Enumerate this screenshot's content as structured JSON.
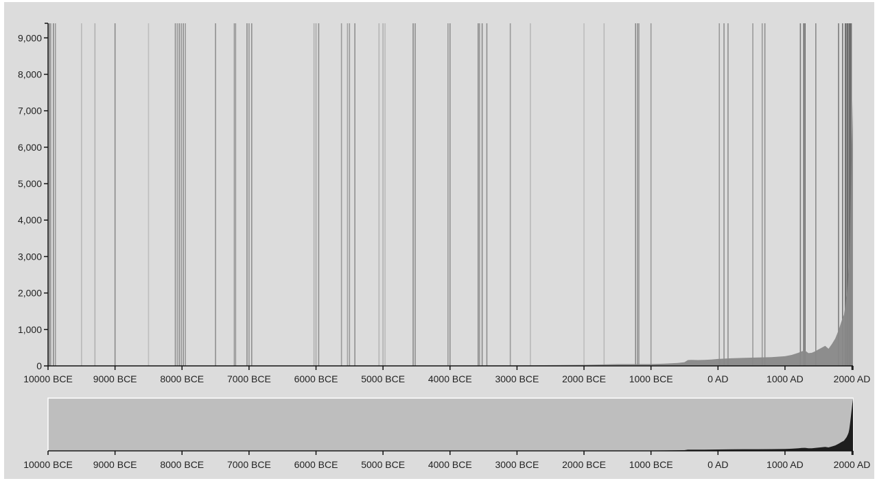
{
  "chart_data": [
    {
      "type": "area",
      "title": "",
      "xlabel": "",
      "ylabel": "",
      "xlim": [
        -10000,
        2015
      ],
      "ylim": [
        0,
        9400
      ],
      "grid": false,
      "x_ticks": [
        {
          "value": -10000,
          "label": "10000 BCE"
        },
        {
          "value": -9000,
          "label": "9000 BCE"
        },
        {
          "value": -8000,
          "label": "8000 BCE"
        },
        {
          "value": -7000,
          "label": "7000 BCE"
        },
        {
          "value": -6000,
          "label": "6000 BCE"
        },
        {
          "value": -5000,
          "label": "5000 BCE"
        },
        {
          "value": -4000,
          "label": "4000 BCE"
        },
        {
          "value": -3000,
          "label": "3000 BCE"
        },
        {
          "value": -2000,
          "label": "2000 BCE"
        },
        {
          "value": -1000,
          "label": "1000 BCE"
        },
        {
          "value": 0,
          "label": "0 AD"
        },
        {
          "value": 1000,
          "label": "1000 AD"
        },
        {
          "value": 2000,
          "label": "2000 AD"
        }
      ],
      "y_ticks": [
        {
          "value": 0,
          "label": "0"
        },
        {
          "value": 1000,
          "label": "1,000"
        },
        {
          "value": 2000,
          "label": "2,000"
        },
        {
          "value": 3000,
          "label": "3,000"
        },
        {
          "value": 4000,
          "label": "4,000"
        },
        {
          "value": 5000,
          "label": "5,000"
        },
        {
          "value": 6000,
          "label": "6,000"
        },
        {
          "value": 7000,
          "label": "7,000"
        },
        {
          "value": 8000,
          "label": "8,000"
        },
        {
          "value": 9000,
          "label": "9,000"
        }
      ],
      "series": [
        {
          "x": [
            -10000,
            -8000,
            -6000,
            -4000,
            -3000,
            -2000,
            -1500,
            -1000,
            -800,
            -600,
            -500,
            -450,
            -400,
            -300,
            -200,
            -100,
            0,
            200,
            400,
            600,
            800,
            1000,
            1100,
            1200,
            1250,
            1300,
            1350,
            1400,
            1450,
            1500,
            1550,
            1600,
            1650,
            1700,
            1750,
            1800,
            1850,
            1880,
            1900,
            1920,
            1940,
            1950,
            1960,
            1970,
            1980,
            1990,
            2000,
            2005,
            2010,
            2015
          ],
          "values": [
            4,
            5,
            7,
            10,
            14,
            27,
            50,
            50,
            60,
            80,
            100,
            160,
            165,
            160,
            165,
            175,
            190,
            210,
            220,
            230,
            240,
            265,
            300,
            360,
            400,
            420,
            350,
            360,
            400,
            450,
            500,
            550,
            470,
            600,
            750,
            980,
            1260,
            1400,
            1650,
            1900,
            2300,
            2550,
            3000,
            3700,
            4450,
            5300,
            6100,
            6500,
            6900,
            7300
          ]
        }
      ],
      "event_lines": [
        {
          "x": -9980,
          "color": "#888888"
        },
        {
          "x": -9960,
          "color": "#999999"
        },
        {
          "x": -9920,
          "color": "#888888"
        },
        {
          "x": -9890,
          "color": "#999999"
        },
        {
          "x": -9500,
          "color": "#b8b8b8"
        },
        {
          "x": -9300,
          "color": "#b0b0b0"
        },
        {
          "x": -9000,
          "color": "#8a8a8a"
        },
        {
          "x": -8500,
          "color": "#bdbdbd"
        },
        {
          "x": -8100,
          "color": "#8f8f8f"
        },
        {
          "x": -8070,
          "color": "#999999"
        },
        {
          "x": -8040,
          "color": "#8a8a8a"
        },
        {
          "x": -8010,
          "color": "#969696"
        },
        {
          "x": -7980,
          "color": "#8f8f8f"
        },
        {
          "x": -7950,
          "color": "#999999"
        },
        {
          "x": -7500,
          "color": "#8f8f8f"
        },
        {
          "x": -7220,
          "color": "#999999"
        },
        {
          "x": -7200,
          "color": "#9a9a9a"
        },
        {
          "x": -7030,
          "color": "#8a8a8a"
        },
        {
          "x": -7000,
          "color": "#969696"
        },
        {
          "x": -6960,
          "color": "#8f8f8f"
        },
        {
          "x": -6030,
          "color": "#b0b0b0"
        },
        {
          "x": -6000,
          "color": "#a8a8a8"
        },
        {
          "x": -5960,
          "color": "#8f8f8f"
        },
        {
          "x": -5620,
          "color": "#999999"
        },
        {
          "x": -5530,
          "color": "#a3a3a3"
        },
        {
          "x": -5500,
          "color": "#999999"
        },
        {
          "x": -5420,
          "color": "#8f8f8f"
        },
        {
          "x": -5060,
          "color": "#b5b5b5"
        },
        {
          "x": -5000,
          "color": "#b0b0b0"
        },
        {
          "x": -4970,
          "color": "#b8b8b8"
        },
        {
          "x": -4550,
          "color": "#8a8a8a"
        },
        {
          "x": -4520,
          "color": "#8f8f8f"
        },
        {
          "x": -4030,
          "color": "#999999"
        },
        {
          "x": -4000,
          "color": "#8f8f8f"
        },
        {
          "x": -3580,
          "color": "#8a8a8a"
        },
        {
          "x": -3560,
          "color": "#999999"
        },
        {
          "x": -3520,
          "color": "#8a8a8a"
        },
        {
          "x": -3450,
          "color": "#8f8f8f"
        },
        {
          "x": -3100,
          "color": "#999999"
        },
        {
          "x": -2800,
          "color": "#b8b8b8"
        },
        {
          "x": -2000,
          "color": "#bdbdbd"
        },
        {
          "x": -1700,
          "color": "#b8b8b8"
        },
        {
          "x": -1230,
          "color": "#8a8a8a"
        },
        {
          "x": -1200,
          "color": "#8f8f8f"
        },
        {
          "x": -1180,
          "color": "#999999"
        },
        {
          "x": -1000,
          "color": "#999999"
        },
        {
          "x": 20,
          "color": "#999999"
        },
        {
          "x": 90,
          "color": "#8f8f8f"
        },
        {
          "x": 150,
          "color": "#8f8f8f"
        },
        {
          "x": 520,
          "color": "#999999"
        },
        {
          "x": 660,
          "color": "#999999"
        },
        {
          "x": 700,
          "color": "#8f8f8f"
        },
        {
          "x": 1230,
          "color": "#7a7a7a"
        },
        {
          "x": 1280,
          "color": "#707070"
        },
        {
          "x": 1300,
          "color": "#6e6e6e"
        },
        {
          "x": 1460,
          "color": "#8a8a8a"
        },
        {
          "x": 1800,
          "color": "#7a7a7a"
        },
        {
          "x": 1860,
          "color": "#707070"
        },
        {
          "x": 1900,
          "color": "#6e6e6e"
        },
        {
          "x": 1910,
          "color": "#707070"
        },
        {
          "x": 1930,
          "color": "#6a6a6a"
        },
        {
          "x": 1940,
          "color": "#6e6e6e"
        },
        {
          "x": 1960,
          "color": "#707070"
        },
        {
          "x": 1970,
          "color": "#6a6a6a"
        },
        {
          "x": 1980,
          "color": "#6e6e6e"
        },
        {
          "x": 1990,
          "color": "#707070"
        }
      ],
      "colors": {
        "area": "#888888",
        "background": "#dcdcdc"
      }
    },
    {
      "type": "area",
      "title": "",
      "xlim": [
        -10000,
        2015
      ],
      "ylim": [
        0,
        7300
      ],
      "x_ticks": [
        {
          "value": -10000,
          "label": "10000 BCE"
        },
        {
          "value": -9000,
          "label": "9000 BCE"
        },
        {
          "value": -8000,
          "label": "8000 BCE"
        },
        {
          "value": -7000,
          "label": "7000 BCE"
        },
        {
          "value": -6000,
          "label": "6000 BCE"
        },
        {
          "value": -5000,
          "label": "5000 BCE"
        },
        {
          "value": -4000,
          "label": "4000 BCE"
        },
        {
          "value": -3000,
          "label": "3000 BCE"
        },
        {
          "value": -2000,
          "label": "2000 BCE"
        },
        {
          "value": -1000,
          "label": "1000 BCE"
        },
        {
          "value": 0,
          "label": "0 AD"
        },
        {
          "value": 1000,
          "label": "1000 AD"
        },
        {
          "value": 2000,
          "label": "2000 AD"
        }
      ],
      "series": [
        {
          "x": [
            -10000,
            -8000,
            -6000,
            -4000,
            -3000,
            -2000,
            -1500,
            -1000,
            -800,
            -600,
            -500,
            -450,
            -400,
            -300,
            -200,
            -100,
            0,
            200,
            400,
            600,
            800,
            1000,
            1100,
            1200,
            1250,
            1300,
            1350,
            1400,
            1450,
            1500,
            1550,
            1600,
            1650,
            1700,
            1750,
            1800,
            1850,
            1880,
            1900,
            1920,
            1940,
            1950,
            1960,
            1970,
            1980,
            1990,
            2000,
            2005,
            2010,
            2015
          ],
          "values": [
            4,
            5,
            7,
            10,
            14,
            27,
            50,
            50,
            60,
            80,
            100,
            160,
            165,
            160,
            165,
            175,
            190,
            210,
            220,
            230,
            240,
            265,
            300,
            360,
            400,
            420,
            350,
            360,
            400,
            450,
            500,
            550,
            470,
            600,
            750,
            980,
            1260,
            1400,
            1650,
            1900,
            2300,
            2550,
            3000,
            3700,
            4450,
            5300,
            6100,
            6500,
            6900,
            7300
          ]
        }
      ],
      "brush_extent": [
        -10000,
        2015
      ],
      "colors": {
        "area": "#1e1e1e",
        "brush": "#bebebe"
      }
    }
  ]
}
